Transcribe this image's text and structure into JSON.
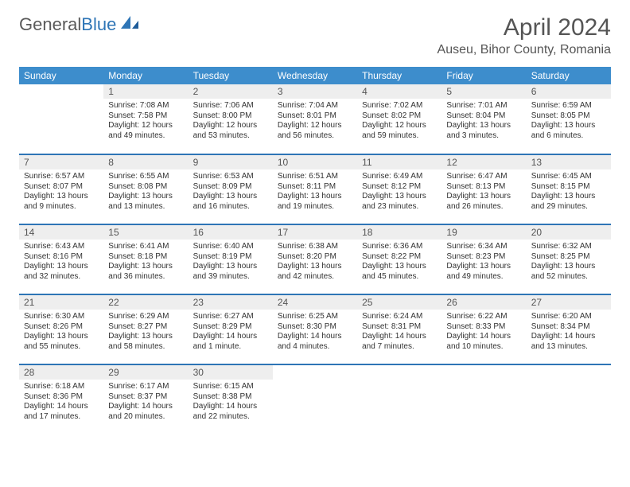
{
  "logo": {
    "part1": "General",
    "part2": "Blue"
  },
  "title": "April 2024",
  "location": "Auseu, Bihor County, Romania",
  "colors": {
    "header_bg": "#3d8dcc",
    "row_divider": "#2e75b6",
    "daynum_bg": "#eeeeee",
    "text": "#333333",
    "logo_gray": "#5a5a5a",
    "logo_blue": "#2e75b6"
  },
  "day_headers": [
    "Sunday",
    "Monday",
    "Tuesday",
    "Wednesday",
    "Thursday",
    "Friday",
    "Saturday"
  ],
  "weeks": [
    [
      null,
      {
        "n": "1",
        "sunrise": "Sunrise: 7:08 AM",
        "sunset": "Sunset: 7:58 PM",
        "daylight": "Daylight: 12 hours and 49 minutes."
      },
      {
        "n": "2",
        "sunrise": "Sunrise: 7:06 AM",
        "sunset": "Sunset: 8:00 PM",
        "daylight": "Daylight: 12 hours and 53 minutes."
      },
      {
        "n": "3",
        "sunrise": "Sunrise: 7:04 AM",
        "sunset": "Sunset: 8:01 PM",
        "daylight": "Daylight: 12 hours and 56 minutes."
      },
      {
        "n": "4",
        "sunrise": "Sunrise: 7:02 AM",
        "sunset": "Sunset: 8:02 PM",
        "daylight": "Daylight: 12 hours and 59 minutes."
      },
      {
        "n": "5",
        "sunrise": "Sunrise: 7:01 AM",
        "sunset": "Sunset: 8:04 PM",
        "daylight": "Daylight: 13 hours and 3 minutes."
      },
      {
        "n": "6",
        "sunrise": "Sunrise: 6:59 AM",
        "sunset": "Sunset: 8:05 PM",
        "daylight": "Daylight: 13 hours and 6 minutes."
      }
    ],
    [
      {
        "n": "7",
        "sunrise": "Sunrise: 6:57 AM",
        "sunset": "Sunset: 8:07 PM",
        "daylight": "Daylight: 13 hours and 9 minutes."
      },
      {
        "n": "8",
        "sunrise": "Sunrise: 6:55 AM",
        "sunset": "Sunset: 8:08 PM",
        "daylight": "Daylight: 13 hours and 13 minutes."
      },
      {
        "n": "9",
        "sunrise": "Sunrise: 6:53 AM",
        "sunset": "Sunset: 8:09 PM",
        "daylight": "Daylight: 13 hours and 16 minutes."
      },
      {
        "n": "10",
        "sunrise": "Sunrise: 6:51 AM",
        "sunset": "Sunset: 8:11 PM",
        "daylight": "Daylight: 13 hours and 19 minutes."
      },
      {
        "n": "11",
        "sunrise": "Sunrise: 6:49 AM",
        "sunset": "Sunset: 8:12 PM",
        "daylight": "Daylight: 13 hours and 23 minutes."
      },
      {
        "n": "12",
        "sunrise": "Sunrise: 6:47 AM",
        "sunset": "Sunset: 8:13 PM",
        "daylight": "Daylight: 13 hours and 26 minutes."
      },
      {
        "n": "13",
        "sunrise": "Sunrise: 6:45 AM",
        "sunset": "Sunset: 8:15 PM",
        "daylight": "Daylight: 13 hours and 29 minutes."
      }
    ],
    [
      {
        "n": "14",
        "sunrise": "Sunrise: 6:43 AM",
        "sunset": "Sunset: 8:16 PM",
        "daylight": "Daylight: 13 hours and 32 minutes."
      },
      {
        "n": "15",
        "sunrise": "Sunrise: 6:41 AM",
        "sunset": "Sunset: 8:18 PM",
        "daylight": "Daylight: 13 hours and 36 minutes."
      },
      {
        "n": "16",
        "sunrise": "Sunrise: 6:40 AM",
        "sunset": "Sunset: 8:19 PM",
        "daylight": "Daylight: 13 hours and 39 minutes."
      },
      {
        "n": "17",
        "sunrise": "Sunrise: 6:38 AM",
        "sunset": "Sunset: 8:20 PM",
        "daylight": "Daylight: 13 hours and 42 minutes."
      },
      {
        "n": "18",
        "sunrise": "Sunrise: 6:36 AM",
        "sunset": "Sunset: 8:22 PM",
        "daylight": "Daylight: 13 hours and 45 minutes."
      },
      {
        "n": "19",
        "sunrise": "Sunrise: 6:34 AM",
        "sunset": "Sunset: 8:23 PM",
        "daylight": "Daylight: 13 hours and 49 minutes."
      },
      {
        "n": "20",
        "sunrise": "Sunrise: 6:32 AM",
        "sunset": "Sunset: 8:25 PM",
        "daylight": "Daylight: 13 hours and 52 minutes."
      }
    ],
    [
      {
        "n": "21",
        "sunrise": "Sunrise: 6:30 AM",
        "sunset": "Sunset: 8:26 PM",
        "daylight": "Daylight: 13 hours and 55 minutes."
      },
      {
        "n": "22",
        "sunrise": "Sunrise: 6:29 AM",
        "sunset": "Sunset: 8:27 PM",
        "daylight": "Daylight: 13 hours and 58 minutes."
      },
      {
        "n": "23",
        "sunrise": "Sunrise: 6:27 AM",
        "sunset": "Sunset: 8:29 PM",
        "daylight": "Daylight: 14 hours and 1 minute."
      },
      {
        "n": "24",
        "sunrise": "Sunrise: 6:25 AM",
        "sunset": "Sunset: 8:30 PM",
        "daylight": "Daylight: 14 hours and 4 minutes."
      },
      {
        "n": "25",
        "sunrise": "Sunrise: 6:24 AM",
        "sunset": "Sunset: 8:31 PM",
        "daylight": "Daylight: 14 hours and 7 minutes."
      },
      {
        "n": "26",
        "sunrise": "Sunrise: 6:22 AM",
        "sunset": "Sunset: 8:33 PM",
        "daylight": "Daylight: 14 hours and 10 minutes."
      },
      {
        "n": "27",
        "sunrise": "Sunrise: 6:20 AM",
        "sunset": "Sunset: 8:34 PM",
        "daylight": "Daylight: 14 hours and 13 minutes."
      }
    ],
    [
      {
        "n": "28",
        "sunrise": "Sunrise: 6:18 AM",
        "sunset": "Sunset: 8:36 PM",
        "daylight": "Daylight: 14 hours and 17 minutes."
      },
      {
        "n": "29",
        "sunrise": "Sunrise: 6:17 AM",
        "sunset": "Sunset: 8:37 PM",
        "daylight": "Daylight: 14 hours and 20 minutes."
      },
      {
        "n": "30",
        "sunrise": "Sunrise: 6:15 AM",
        "sunset": "Sunset: 8:38 PM",
        "daylight": "Daylight: 14 hours and 22 minutes."
      },
      null,
      null,
      null,
      null
    ]
  ]
}
